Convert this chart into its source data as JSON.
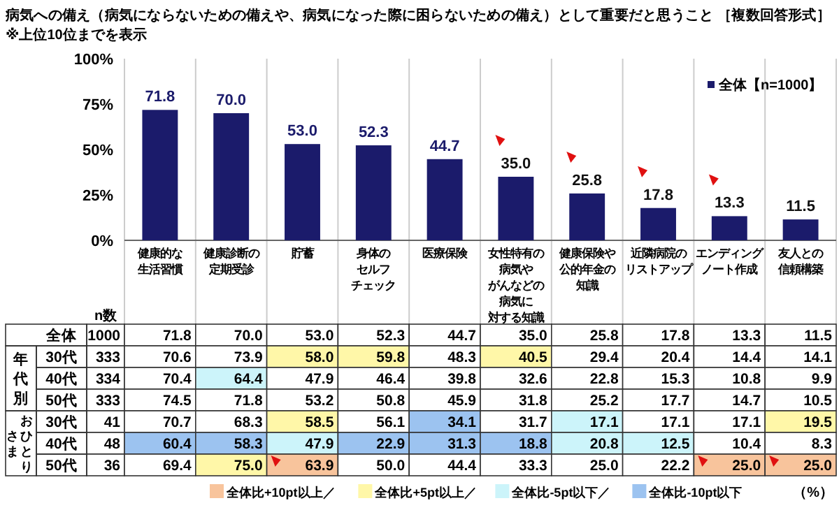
{
  "chart_data": [
    {
      "type": "bar",
      "title": "病気への備え（病気にならないための備えや、病気になった際に困らないための備え）として重要だと思うこと ［複数回答形式］",
      "subtitle": "※上位10位までを表示",
      "categories": [
        "健康的な生活習慣",
        "健康診断の定期受診",
        "貯蓄",
        "身体のセルフチェック",
        "医療保険",
        "女性特有の病気やがんなどの病気に対する知識",
        "健康保険や公的年金の知識",
        "近隣病院のリストアップ",
        "エンディングノート作成",
        "友人との信頼構築"
      ],
      "series": [
        {
          "name": "全体【n=1000】",
          "color": "#1b1b6b",
          "values": [
            71.8,
            70.0,
            53.0,
            52.3,
            44.7,
            35.0,
            25.8,
            17.8,
            13.3,
            11.5
          ],
          "value_labels": [
            "71.8",
            "70.0",
            "53.0",
            "52.3",
            "44.7",
            "35.0",
            "25.8",
            "17.8",
            "13.3",
            "11.5"
          ]
        }
      ],
      "ylim": [
        0,
        100
      ],
      "yticks": [
        {
          "value": 0,
          "label": "0%"
        },
        {
          "value": 25,
          "label": "25%"
        },
        {
          "value": 50,
          "label": "50%"
        },
        {
          "value": 75,
          "label": "75%"
        },
        {
          "value": 100,
          "label": "100%"
        }
      ],
      "legend": "top right"
    },
    {
      "type": "heatmap",
      "categories": [
        null,
        null,
        null,
        null,
        null,
        null,
        null,
        null,
        null,
        null
      ],
      "y_categories": [
        "全体",
        "30代",
        "40代",
        "50代",
        "30代",
        "40代",
        "50代"
      ],
      "y2_categories": [
        "1000",
        "333",
        "334",
        "333",
        "41",
        "48",
        "36"
      ],
      "annotations": [
        "年代別",
        "おひとりさま",
        "（%）",
        "n数",
        "全体比+10pt以上／",
        "全体比+5pt以上／",
        "全体比-5pt以下／",
        "全体比-10pt以下"
      ],
      "colors": [
        [
          null,
          null,
          null,
          null,
          null,
          null,
          null,
          null,
          null,
          null
        ],
        [
          null,
          null,
          "#fff7a8",
          "#fff7a8",
          null,
          "#fff7a8",
          null,
          null,
          null,
          null
        ],
        [
          null,
          "#ccf4fa",
          null,
          null,
          null,
          null,
          null,
          null,
          null,
          null
        ],
        [
          null,
          null,
          null,
          null,
          null,
          null,
          null,
          null,
          null,
          null
        ],
        [
          null,
          null,
          "#fff7a8",
          null,
          "#9cc3f0",
          null,
          "#ccf4fa",
          null,
          null,
          "#fff7a8"
        ],
        [
          "#9cc3f0",
          "#9cc3f0",
          "#ccf4fa",
          "#9cc3f0",
          "#9cc3f0",
          "#9cc3f0",
          "#ccf4fa",
          "#ccf4fa",
          null,
          null
        ],
        [
          null,
          "#fff7a8",
          "#f8c49c",
          null,
          null,
          null,
          null,
          null,
          "#f8c49c",
          "#f8c49c"
        ]
      ],
      "cells": [
        [
          71.8,
          70.0,
          53.0,
          52.3,
          44.7,
          35.0,
          25.8,
          17.8,
          13.3,
          11.5
        ],
        [
          70.6,
          73.9,
          58.0,
          59.8,
          48.3,
          40.5,
          29.4,
          20.4,
          14.4,
          14.1
        ],
        [
          70.4,
          64.4,
          47.9,
          46.4,
          39.8,
          32.6,
          22.8,
          15.3,
          10.8,
          9.9
        ],
        [
          74.5,
          71.8,
          53.2,
          50.8,
          45.9,
          31.8,
          25.2,
          17.7,
          14.7,
          10.5
        ],
        [
          70.7,
          68.3,
          58.5,
          56.1,
          34.1,
          31.7,
          17.1,
          17.1,
          17.1,
          19.5
        ],
        [
          60.4,
          58.3,
          47.9,
          22.9,
          31.3,
          18.8,
          20.8,
          12.5,
          10.4,
          8.3
        ],
        [
          69.4,
          75.0,
          63.9,
          50.0,
          44.4,
          33.3,
          25.0,
          22.2,
          25.0,
          25.0
        ]
      ],
      "cell_labels": [
        [
          "71.8",
          "70.0",
          "53.0",
          "52.3",
          "44.7",
          "35.0",
          "25.8",
          "17.8",
          "13.3",
          "11.5"
        ],
        [
          "70.6",
          "73.9",
          "58.0",
          "59.8",
          "48.3",
          "40.5",
          "29.4",
          "20.4",
          "14.4",
          "14.1"
        ],
        [
          "70.4",
          "64.4",
          "47.9",
          "46.4",
          "39.8",
          "32.6",
          "22.8",
          "15.3",
          "10.8",
          "9.9"
        ],
        [
          "74.5",
          "71.8",
          "53.2",
          "50.8",
          "45.9",
          "31.8",
          "25.2",
          "17.7",
          "14.7",
          "10.5"
        ],
        [
          "70.7",
          "68.3",
          "58.5",
          "56.1",
          "34.1",
          "31.7",
          "17.1",
          "17.1",
          "17.1",
          "19.5"
        ],
        [
          "60.4",
          "58.3",
          "47.9",
          "22.9",
          "31.3",
          "18.8",
          "20.8",
          "12.5",
          "10.4",
          "8.3"
        ],
        [
          "69.4",
          "75.0",
          "63.9",
          "50.0",
          "44.4",
          "33.3",
          "25.0",
          "22.2",
          "25.0",
          "25.0"
        ]
      ]
    }
  ]
}
